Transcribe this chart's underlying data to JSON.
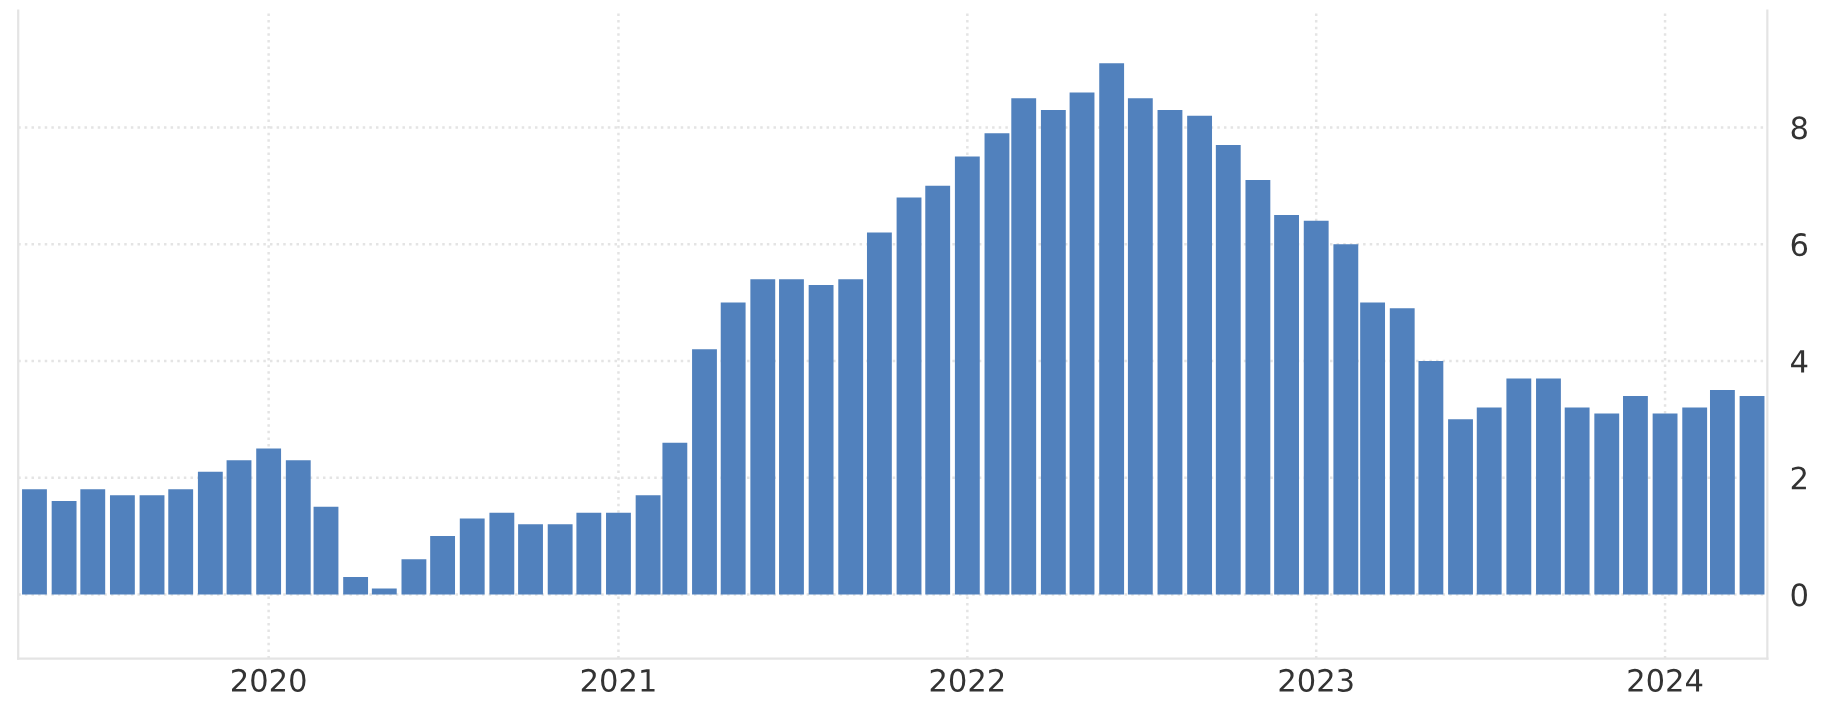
{
  "chart_data": {
    "type": "bar",
    "x": [
      "2019-05",
      "2019-06",
      "2019-07",
      "2019-08",
      "2019-09",
      "2019-10",
      "2019-11",
      "2019-12",
      "2020-01",
      "2020-02",
      "2020-03",
      "2020-04",
      "2020-05",
      "2020-06",
      "2020-07",
      "2020-08",
      "2020-09",
      "2020-10",
      "2020-11",
      "2020-12",
      "2021-01",
      "2021-02",
      "2021-03",
      "2021-04",
      "2021-05",
      "2021-06",
      "2021-07",
      "2021-08",
      "2021-09",
      "2021-10",
      "2021-11",
      "2021-12",
      "2022-01",
      "2022-02",
      "2022-03",
      "2022-04",
      "2022-05",
      "2022-06",
      "2022-07",
      "2022-08",
      "2022-09",
      "2022-10",
      "2022-11",
      "2022-12",
      "2023-01",
      "2023-02",
      "2023-03",
      "2023-04",
      "2023-05",
      "2023-06",
      "2023-07",
      "2023-08",
      "2023-09",
      "2023-10",
      "2023-11",
      "2023-12",
      "2024-01",
      "2024-02",
      "2024-03",
      "2024-04"
    ],
    "values": [
      1.8,
      1.6,
      1.8,
      1.7,
      1.7,
      1.8,
      2.1,
      2.3,
      2.5,
      2.3,
      1.5,
      0.3,
      0.1,
      0.6,
      1.0,
      1.3,
      1.4,
      1.2,
      1.2,
      1.4,
      1.4,
      1.7,
      2.6,
      4.2,
      5.0,
      5.4,
      5.4,
      5.3,
      5.4,
      6.2,
      6.8,
      7.0,
      7.5,
      7.9,
      8.5,
      8.3,
      8.6,
      9.1,
      8.5,
      8.3,
      8.2,
      7.7,
      7.1,
      6.5,
      6.4,
      6.0,
      5.0,
      4.9,
      4.0,
      3.0,
      3.2,
      3.7,
      3.7,
      3.2,
      3.1,
      3.4,
      3.1,
      3.2,
      3.5,
      3.4
    ],
    "color": "#5181bd",
    "xlim": [
      "2019-04-14",
      "2024-04-17"
    ],
    "xticks": [
      {
        "value": "2020-01",
        "label": "2020"
      },
      {
        "value": "2021-01",
        "label": "2021"
      },
      {
        "value": "2022-01",
        "label": "2022"
      },
      {
        "value": "2023-01",
        "label": "2023"
      },
      {
        "value": "2024-01",
        "label": "2024"
      }
    ],
    "ylim": [
      -1.1,
      10
    ],
    "yticks": [
      0,
      2,
      4,
      6,
      8
    ],
    "grid": true
  }
}
